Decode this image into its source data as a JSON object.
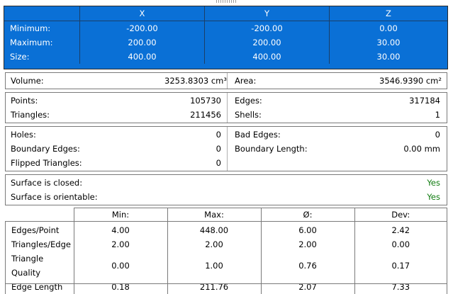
{
  "bbox": {
    "headers": [
      "X",
      "Y",
      "Z"
    ],
    "rows": [
      {
        "label": "Minimum:",
        "x": "-200.00",
        "y": "-200.00",
        "z": "0.00"
      },
      {
        "label": "Maximum:",
        "x": "200.00",
        "y": "200.00",
        "z": "30.00"
      },
      {
        "label": "Size:",
        "x": "400.00",
        "y": "400.00",
        "z": "30.00"
      }
    ]
  },
  "volume_area": {
    "volume_label": "Volume:",
    "volume_value": "3253.8303 cm³",
    "area_label": "Area:",
    "area_value": "3546.9390 cm²"
  },
  "counts": {
    "points_label": "Points:",
    "points_value": "105730",
    "triangles_label": "Triangles:",
    "triangles_value": "211456",
    "edges_label": "Edges:",
    "edges_value": "317184",
    "shells_label": "Shells:",
    "shells_value": "1"
  },
  "defects": {
    "holes_label": "Holes:",
    "holes_value": "0",
    "boundary_edges_label": "Boundary Edges:",
    "boundary_edges_value": "0",
    "flipped_label": "Flipped Triangles:",
    "flipped_value": "0",
    "bad_edges_label": "Bad Edges:",
    "bad_edges_value": "0",
    "boundary_length_label": "Boundary Length:",
    "boundary_length_value": "0.00 mm"
  },
  "surface": {
    "closed_label": "Surface is closed:",
    "closed_value": "Yes",
    "orientable_label": "Surface is orientable:",
    "orientable_value": "Yes",
    "yes_color": "#107c10"
  },
  "stats": {
    "headers": [
      "Min:",
      "Max:",
      "Ø:",
      "Dev:"
    ],
    "rows": [
      {
        "name": "Edges/Point",
        "min": "4.00",
        "max": "448.00",
        "avg": "6.00",
        "dev": "2.42"
      },
      {
        "name": "Triangles/Edge",
        "min": "2.00",
        "max": "2.00",
        "avg": "2.00",
        "dev": "0.00"
      },
      {
        "name": "Triangle Quality",
        "min": "0.00",
        "max": "1.00",
        "avg": "0.76",
        "dev": "0.17"
      },
      {
        "name": "Edge Length",
        "min": "0.18",
        "max": "211.76",
        "avg": "2.07",
        "dev": "7.33"
      }
    ]
  },
  "colors": {
    "selection_blue": "#0a70d6"
  }
}
